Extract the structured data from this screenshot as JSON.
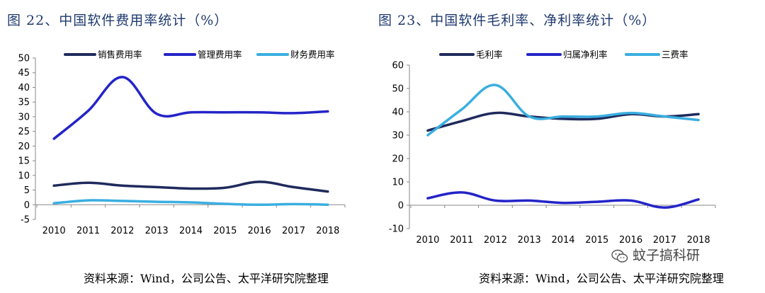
{
  "figures": [
    {
      "title": "图 22、中国软件费用率统计（%）",
      "source": "资料来源：Wind，公司公告、太平洋研究院整理"
    },
    {
      "title": "图 23、中国软件毛利率、净利率统计（%）",
      "source": "资料来源：Wind，公司公告、太平洋研究院整理"
    }
  ],
  "watermark": {
    "text": "蚊子搞科研",
    "icon": "wechat-icon"
  },
  "chart_data": [
    {
      "type": "line",
      "title": "图 22、中国软件费用率统计（%）",
      "x": [
        "2010",
        "2011",
        "2012",
        "2013",
        "2014",
        "2015",
        "2016",
        "2017",
        "2018"
      ],
      "ylim": [
        -5,
        50
      ],
      "yticks": [
        -5,
        0,
        5,
        10,
        15,
        20,
        25,
        30,
        35,
        40,
        45,
        50
      ],
      "grid": false,
      "legend": "top",
      "series": [
        {
          "name": "销售费用率",
          "color": "#1f2a5c",
          "values": [
            6.5,
            7.5,
            6.5,
            6,
            5.5,
            5.8,
            7.8,
            6,
            4.5
          ]
        },
        {
          "name": "管理费用率",
          "color": "#2424c8",
          "values": [
            22.5,
            32,
            43.5,
            31,
            31.5,
            31.5,
            31.5,
            31.2,
            31.8
          ]
        },
        {
          "name": "财务费用率",
          "color": "#3aaee0",
          "values": [
            0.5,
            1.5,
            1.3,
            1,
            0.8,
            0.3,
            0,
            0.2,
            0
          ]
        }
      ]
    },
    {
      "type": "line",
      "title": "图 23、中国软件毛利率、净利率统计（%）",
      "x": [
        "2010",
        "2011",
        "2012",
        "2013",
        "2014",
        "2015",
        "2016",
        "2017",
        "2018"
      ],
      "ylim": [
        -10,
        60
      ],
      "yticks": [
        -10,
        0,
        10,
        20,
        30,
        40,
        50,
        60
      ],
      "grid": false,
      "legend": "top",
      "series": [
        {
          "name": "毛利率",
          "color": "#1f2a5c",
          "values": [
            32,
            36,
            39.5,
            38,
            37,
            37,
            39,
            38,
            39
          ]
        },
        {
          "name": "归属净利率",
          "color": "#2424c8",
          "values": [
            3,
            5.5,
            2,
            2,
            1,
            1.5,
            2,
            -1,
            2.5
          ]
        },
        {
          "name": "三费率",
          "color": "#3aaee0",
          "values": [
            30,
            41,
            51.5,
            38,
            38,
            38,
            39.5,
            38,
            36.5
          ]
        }
      ]
    }
  ]
}
